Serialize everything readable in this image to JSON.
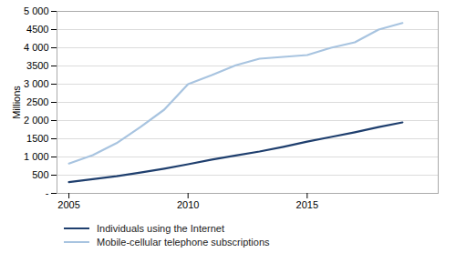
{
  "chart_data": {
    "type": "line",
    "x": [
      2005,
      2006,
      2007,
      2008,
      2009,
      2010,
      2011,
      2012,
      2013,
      2014,
      2015,
      2016,
      2017,
      2018,
      2019
    ],
    "series": [
      {
        "name": "Individuals using the Internet",
        "color": "#1F3F6E",
        "values": [
          310,
          390,
          470,
          570,
          680,
          800,
          930,
          1040,
          1150,
          1280,
          1420,
          1550,
          1680,
          1820,
          1950
        ]
      },
      {
        "name": "Mobile-cellular telephone subscriptions",
        "color": "#A8C4E0",
        "values": [
          820,
          1050,
          1380,
          1820,
          2300,
          3000,
          3250,
          3520,
          3700,
          3750,
          3800,
          4000,
          4150,
          4500,
          4680
        ]
      }
    ],
    "ylabel": "Millions",
    "xlim": [
      2004.5,
      2020.5
    ],
    "xticks": [
      2005,
      2010,
      2015
    ],
    "ylim": [
      0,
      5000
    ],
    "yticks": [
      {
        "value": 0,
        "label": "-"
      },
      500,
      {
        "value": 1000,
        "label": "1 000"
      },
      1500,
      {
        "value": 2000,
        "label": "2 000"
      },
      2500,
      {
        "value": 3000,
        "label": "3 000"
      },
      3500,
      {
        "value": 4000,
        "label": "4 000"
      },
      4500,
      {
        "value": 5000,
        "label": "5 000"
      }
    ],
    "grid": true,
    "legend": "bottom"
  }
}
